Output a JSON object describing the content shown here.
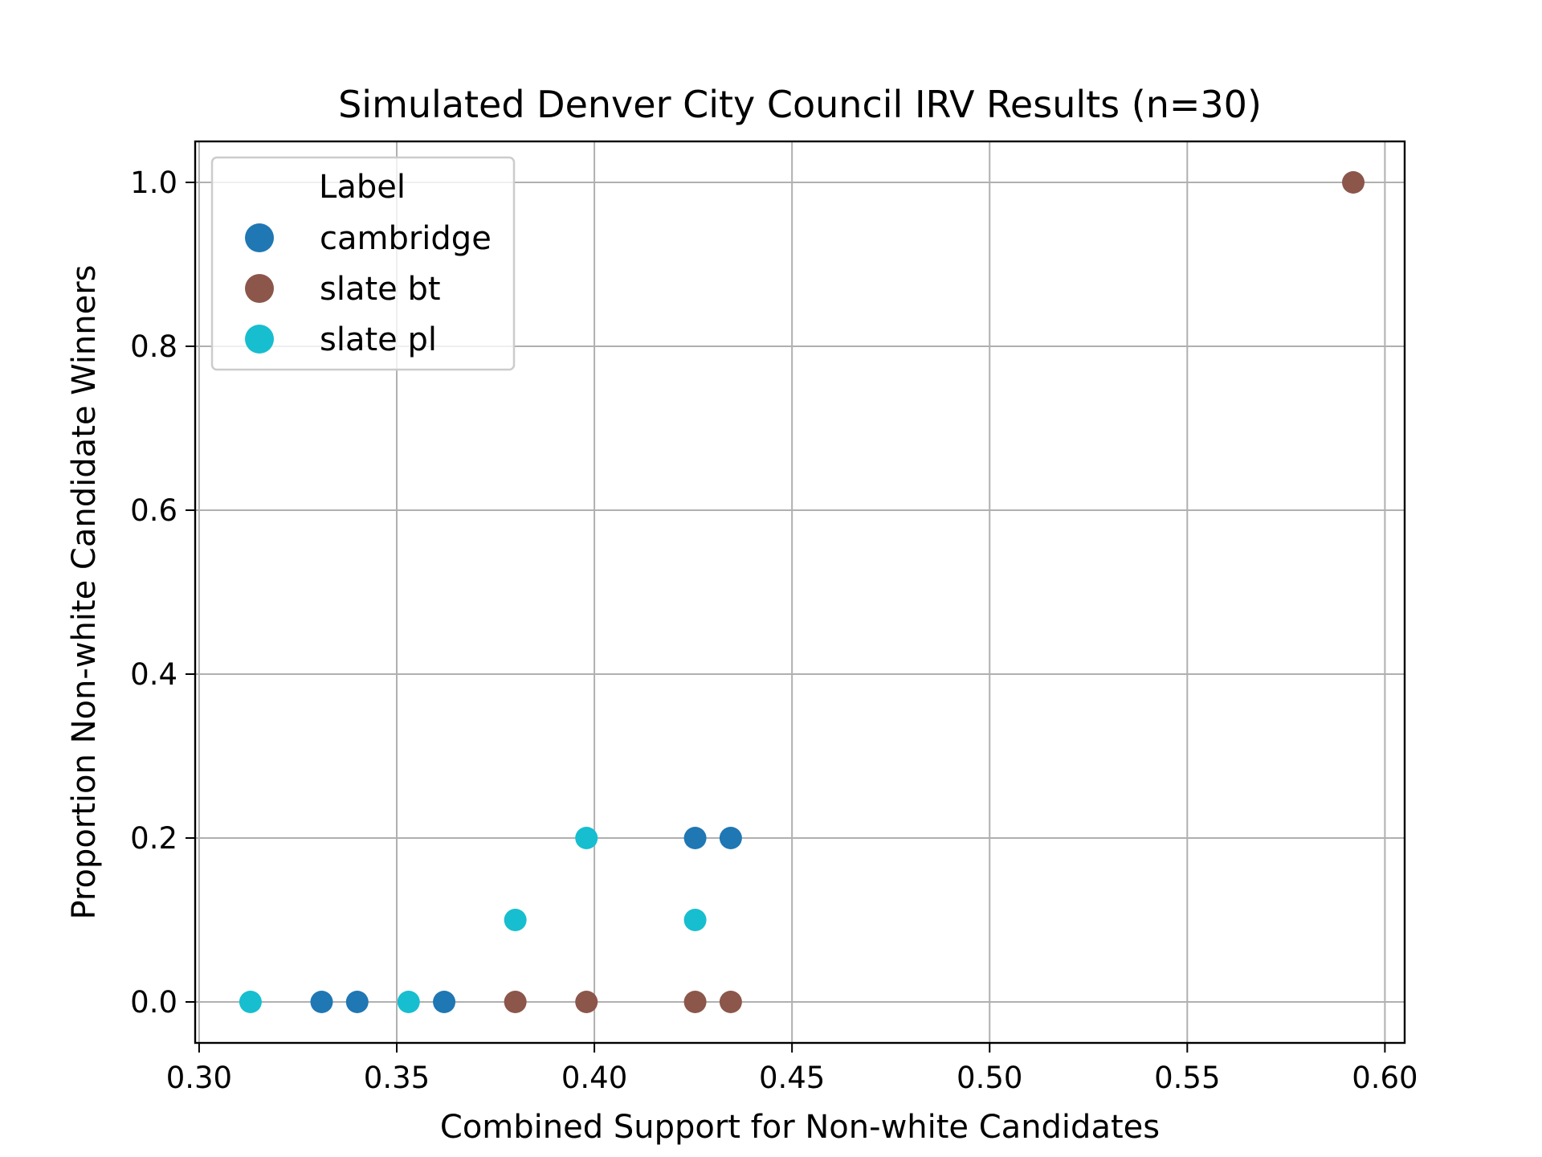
{
  "chart_data": {
    "type": "scatter",
    "title": "Simulated Denver City Council IRV Results (n=30)",
    "xlabel": "Combined Support for Non-white Candidates",
    "ylabel": "Proportion Non-white Candidate Winners",
    "xlim": [
      0.299,
      0.605
    ],
    "ylim": [
      -0.05,
      1.05
    ],
    "xticks": [
      0.3,
      0.35,
      0.4,
      0.45,
      0.5,
      0.55,
      0.6
    ],
    "xtick_labels": [
      "0.30",
      "0.35",
      "0.40",
      "0.45",
      "0.50",
      "0.55",
      "0.60"
    ],
    "yticks": [
      0.0,
      0.2,
      0.4,
      0.6,
      0.8,
      1.0
    ],
    "ytick_labels": [
      "0.0",
      "0.2",
      "0.4",
      "0.6",
      "0.8",
      "1.0"
    ],
    "grid": true,
    "legend": {
      "title": "Label",
      "placement": "upper-left"
    },
    "series": [
      {
        "name": "cambridge",
        "color": "#1f77b4",
        "x": [
          0.331,
          0.34,
          0.362,
          0.4255,
          0.4345
        ],
        "y": [
          0.0,
          0.0,
          0.0,
          0.2,
          0.2
        ]
      },
      {
        "name": "slate bt",
        "color": "#8c564b",
        "x": [
          0.38,
          0.398,
          0.4255,
          0.4345,
          0.592
        ],
        "y": [
          0.0,
          0.0,
          0.0,
          0.0,
          1.0
        ]
      },
      {
        "name": "slate pl",
        "color": "#17becf",
        "x": [
          0.313,
          0.353,
          0.38,
          0.398,
          0.4255
        ],
        "y": [
          0.0,
          0.0,
          0.1,
          0.2,
          0.1
        ]
      }
    ]
  }
}
